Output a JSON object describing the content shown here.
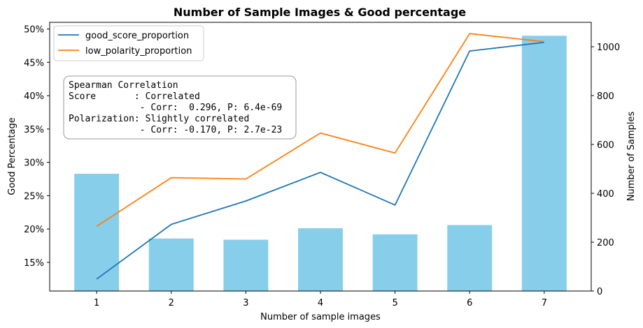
{
  "chart_data": {
    "type": "bar",
    "title": "Number of Sample Images & Good percentage",
    "xlabel": "Number of sample images",
    "ylabel_left": "Good Percentage",
    "ylabel_right": "Number of Samples",
    "categories": [
      "1",
      "2",
      "3",
      "4",
      "5",
      "6",
      "7"
    ],
    "bars": {
      "axis": "right",
      "color": "#87ceeb",
      "values": [
        480,
        215,
        210,
        257,
        232,
        270,
        1045
      ]
    },
    "series": [
      {
        "name": "good_score_proportion",
        "axis": "left",
        "color": "#1f77b4",
        "values": [
          12.5,
          20.7,
          24.2,
          28.5,
          23.6,
          46.7,
          48.0
        ]
      },
      {
        "name": "low_polarity_proportion",
        "axis": "left",
        "color": "#ff7f0e",
        "values": [
          20.4,
          27.7,
          27.5,
          34.4,
          31.4,
          49.3,
          48.1
        ]
      }
    ],
    "ylim_left": [
      10.7,
      51.0
    ],
    "yticks_left": [
      15,
      20,
      25,
      30,
      35,
      40,
      45,
      50
    ],
    "yticklabels_left": [
      "15%",
      "20%",
      "25%",
      "30%",
      "35%",
      "40%",
      "45%",
      "50%"
    ],
    "ylim_right": [
      0,
      1100
    ],
    "yticks_right": [
      0,
      200,
      400,
      600,
      800,
      1000
    ],
    "yticklabels_right": [
      "0",
      "200",
      "400",
      "600",
      "800",
      "1000"
    ],
    "legend_placement": "top-left",
    "grid": false,
    "annotation_lines": [
      "Spearman Correlation",
      "Score       : Correlated",
      "             - Corr:  0.296, P: 6.4e-69",
      "Polarization: Slightly correlated",
      "             - Corr: -0.170, P: 2.7e-23"
    ]
  }
}
